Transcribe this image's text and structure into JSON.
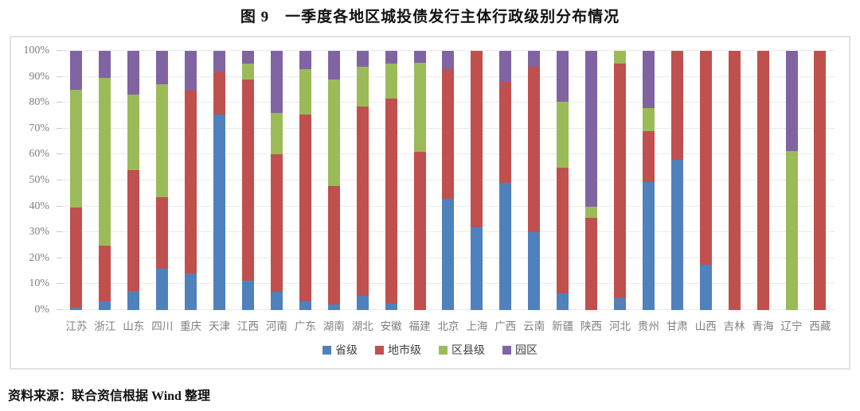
{
  "title": "图 9　一季度各地区城投债发行主体行政级别分布情况",
  "source_note": "资料来源：联合资信根据 Wind 整理",
  "chart_data": {
    "type": "bar",
    "stacked": true,
    "percent_stacked": true,
    "title": "图 9　一季度各地区城投债发行主体行政级别分布情况",
    "xlabel": "",
    "ylabel": "",
    "ylim": [
      0,
      100
    ],
    "y_tick_step": 10,
    "y_tick_labels": [
      "0%",
      "10%",
      "20%",
      "30%",
      "40%",
      "50%",
      "60%",
      "70%",
      "80%",
      "90%",
      "100%"
    ],
    "grid": true,
    "legend_position": "bottom",
    "categories": [
      "江苏",
      "浙江",
      "山东",
      "四川",
      "重庆",
      "天津",
      "江西",
      "河南",
      "广东",
      "湖南",
      "湖北",
      "安徽",
      "福建",
      "北京",
      "上海",
      "广西",
      "云南",
      "新疆",
      "陕西",
      "河北",
      "贵州",
      "甘肃",
      "山西",
      "吉林",
      "青海",
      "辽宁",
      "西藏"
    ],
    "series": [
      {
        "name": "省级",
        "color": "#4F81BD",
        "values": [
          1,
          3.5,
          7.5,
          16,
          14,
          75.5,
          11.5,
          7,
          3.5,
          2,
          5.5,
          2.5,
          0,
          43,
          32,
          49,
          30,
          6.5,
          0,
          4.5,
          49.5,
          58,
          17.5,
          0,
          0,
          0,
          0
        ]
      },
      {
        "name": "地市级",
        "color": "#C0504D",
        "values": [
          38.5,
          21.5,
          46.5,
          27.5,
          71,
          16.5,
          77.5,
          53,
          72,
          46,
          73,
          79,
          61,
          50,
          68,
          39,
          64,
          48.5,
          35.5,
          90.5,
          19.5,
          42,
          82.5,
          100,
          100,
          0,
          100
        ]
      },
      {
        "name": "区县级",
        "color": "#9BBB59",
        "values": [
          45.5,
          64.5,
          29,
          43.5,
          0,
          0,
          6,
          16,
          17.5,
          41,
          15.5,
          13.5,
          34.5,
          0,
          0,
          0,
          0,
          25.5,
          4.5,
          5,
          9,
          0,
          0,
          0,
          0,
          61.5,
          0
        ]
      },
      {
        "name": "园区",
        "color": "#8064A2",
        "values": [
          15,
          10.5,
          17,
          13,
          15,
          8,
          5,
          24,
          7,
          11,
          6,
          5,
          4.5,
          7,
          0,
          12,
          6,
          19.5,
          60,
          0,
          22,
          0,
          0,
          0,
          0,
          38.5,
          0
        ]
      }
    ]
  },
  "colors": {
    "provincial_blue": "#4F81BD",
    "prefecture_red": "#C0504D",
    "district_green": "#9BBB59",
    "park_purple": "#8064A2",
    "gridline": "#EBEBEB",
    "axis_text": "#808080",
    "frame_border": "#E2E2E2"
  }
}
